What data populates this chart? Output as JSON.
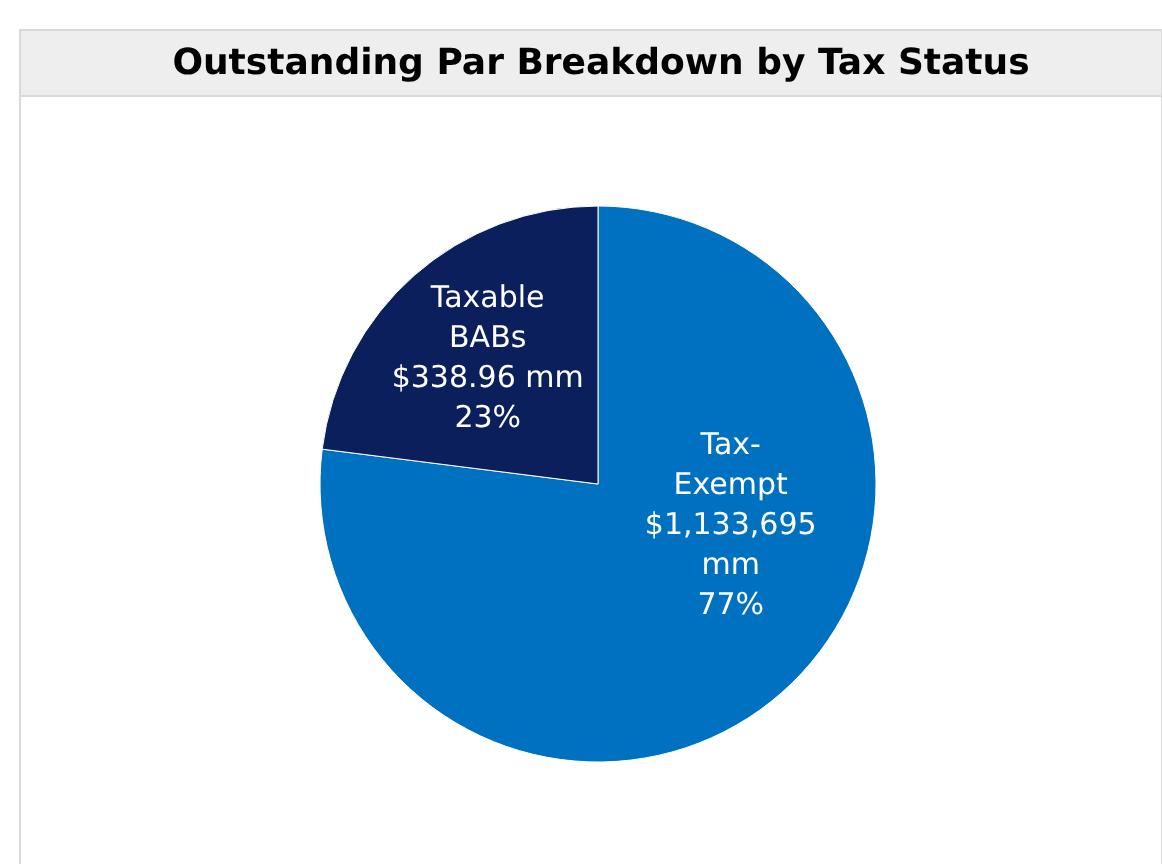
{
  "chart_data": {
    "type": "pie",
    "title": "Outstanding Par Breakdown by Tax Status",
    "categories": [
      "Tax-Exempt",
      "Taxable BABs"
    ],
    "values": [
      77,
      23
    ],
    "colors": [
      "#0070c0",
      "#0b1f5c"
    ],
    "value_labels": [
      "$1,133,695 mm 77%",
      "$338.96 mm 23%"
    ]
  }
}
